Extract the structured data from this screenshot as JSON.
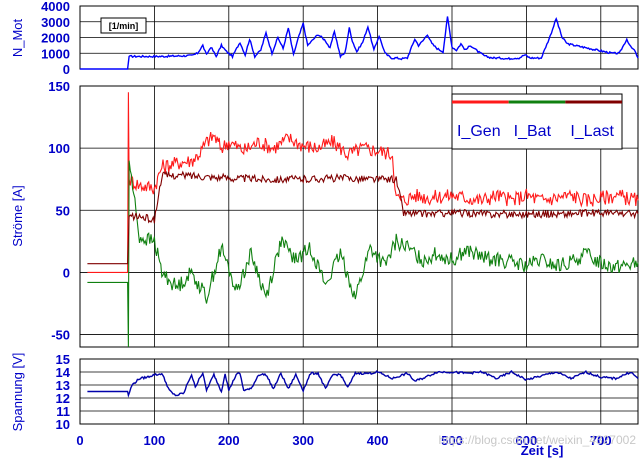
{
  "chart_data": [
    {
      "type": "line",
      "ylabel": "N_Mot",
      "ylim": [
        0,
        4000
      ],
      "yticks": [
        0,
        1000,
        2000,
        3000,
        4000
      ],
      "xlim": [
        0,
        750
      ],
      "grid": true,
      "annotation": "[1/min]",
      "series": [
        {
          "color": "#0000ff",
          "x": [
            0,
            64,
            66,
            110,
            150,
            158,
            165,
            170,
            176,
            183,
            190,
            197,
            205,
            215,
            222,
            228,
            235,
            243,
            250,
            258,
            266,
            273,
            280,
            287,
            293,
            300,
            306,
            312,
            320,
            330,
            336,
            342,
            350,
            356,
            362,
            366,
            372,
            380,
            387,
            395,
            402,
            410,
            418,
            425,
            432,
            440,
            450,
            455,
            461,
            467,
            473,
            480,
            488,
            494,
            500,
            506,
            512,
            518,
            525,
            535,
            545,
            555,
            565,
            575,
            585,
            590,
            598,
            605,
            612,
            620,
            632,
            640,
            648,
            655,
            665,
            675,
            685,
            695,
            705,
            715,
            725,
            735,
            740,
            745,
            750
          ],
          "y": [
            0,
            0,
            800,
            800,
            850,
            1000,
            1500,
            900,
            1400,
            800,
            1500,
            1100,
            800,
            1700,
            900,
            1900,
            800,
            1200,
            2300,
            1000,
            2000,
            1300,
            2600,
            900,
            1900,
            2900,
            1500,
            1800,
            2200,
            1800,
            1300,
            2400,
            800,
            1000,
            2600,
            1800,
            1100,
            1700,
            2700,
            1200,
            2100,
            1000,
            700,
            700,
            650,
            700,
            1900,
            1500,
            1800,
            2200,
            1600,
            1300,
            1100,
            3300,
            1400,
            1200,
            1600,
            1200,
            1500,
            1100,
            800,
            700,
            700,
            650,
            700,
            700,
            900,
            700,
            700,
            700,
            2100,
            3200,
            2000,
            1600,
            1500,
            1400,
            1300,
            1200,
            1100,
            1000,
            1000,
            1900,
            1400,
            1200,
            700
          ]
        }
      ]
    },
    {
      "type": "line",
      "ylabel": "Ströme [A]",
      "ylim": [
        -60,
        150
      ],
      "yticks": [
        -50,
        0,
        50,
        100,
        150
      ],
      "xlim": [
        0,
        750
      ],
      "grid": true,
      "legend": "top-right",
      "series": [
        {
          "name": "I_Gen",
          "color": "#ff1a1a",
          "x": [
            10,
            64,
            65,
            66,
            80,
            100,
            110,
            130,
            150,
            160,
            170,
            180,
            190,
            200,
            220,
            240,
            260,
            280,
            300,
            320,
            340,
            360,
            380,
            400,
            420,
            425,
            435,
            450,
            470,
            500,
            520,
            540,
            560,
            580,
            600,
            620,
            640,
            660,
            680,
            700,
            720,
            750
          ],
          "y": [
            0,
            0,
            145,
            75,
            70,
            68,
            85,
            88,
            90,
            95,
            105,
            110,
            100,
            105,
            98,
            105,
            100,
            108,
            102,
            100,
            105,
            95,
            100,
            98,
            95,
            60,
            58,
            62,
            60,
            62,
            60,
            58,
            62,
            58,
            62,
            58,
            60,
            62,
            58,
            60,
            62,
            58
          ]
        },
        {
          "name": "I_Bat",
          "color": "#108010",
          "x": [
            10,
            64,
            65,
            66,
            80,
            100,
            110,
            130,
            150,
            170,
            190,
            210,
            230,
            250,
            270,
            290,
            310,
            330,
            350,
            370,
            390,
            410,
            425,
            440,
            460,
            480,
            500,
            520,
            540,
            560,
            580,
            600,
            620,
            640,
            660,
            680,
            700,
            720,
            750
          ],
          "y": [
            -8,
            -8,
            -60,
            90,
            28,
            25,
            0,
            -12,
            0,
            -20,
            20,
            -15,
            15,
            -20,
            25,
            10,
            20,
            -10,
            15,
            -20,
            20,
            5,
            25,
            20,
            10,
            15,
            10,
            18,
            12,
            10,
            8,
            5,
            10,
            5,
            8,
            15,
            8,
            5,
            8
          ]
        },
        {
          "name": "I_Last",
          "color": "#800000",
          "x": [
            10,
            64,
            66,
            80,
            100,
            110,
            150,
            200,
            250,
            300,
            350,
            400,
            425,
            435,
            460,
            500,
            550,
            600,
            650,
            700,
            750
          ],
          "y": [
            7,
            7,
            45,
            45,
            42,
            78,
            78,
            76,
            75,
            75,
            76,
            75,
            75,
            48,
            47,
            48,
            47,
            47,
            47,
            48,
            47
          ]
        }
      ]
    },
    {
      "type": "line",
      "ylabel": "Spannung [V]",
      "xlabel": "Zeit [s]",
      "ylim": [
        10,
        15
      ],
      "yticks": [
        10,
        11,
        12,
        13,
        14,
        15
      ],
      "xlim": [
        0,
        750
      ],
      "xticks": [
        0,
        100,
        200,
        300,
        400,
        500,
        600,
        700
      ],
      "grid": true,
      "series": [
        {
          "color": "#0000aa",
          "x": [
            10,
            64,
            65,
            70,
            80,
            90,
            100,
            105,
            110,
            120,
            125,
            130,
            140,
            145,
            150,
            155,
            160,
            165,
            170,
            180,
            190,
            195,
            200,
            210,
            215,
            220,
            230,
            240,
            250,
            260,
            270,
            280,
            290,
            300,
            310,
            320,
            330,
            340,
            350,
            360,
            370,
            380,
            390,
            400,
            420,
            440,
            450,
            460,
            480,
            500,
            520,
            540,
            560,
            580,
            600,
            620,
            640,
            660,
            680,
            700,
            720,
            740,
            750
          ],
          "y": [
            12.5,
            12.5,
            12.2,
            13.0,
            13.5,
            13.6,
            13.8,
            13.8,
            13.9,
            12.6,
            12.3,
            12.2,
            12.4,
            13.2,
            13.8,
            12.8,
            13.5,
            13.9,
            12.6,
            13.8,
            12.5,
            13.9,
            12.6,
            13.8,
            13.9,
            12.6,
            12.7,
            13.8,
            13.8,
            12.7,
            13.9,
            12.7,
            13.8,
            12.6,
            13.9,
            13.9,
            12.7,
            13.8,
            13.8,
            12.8,
            13.9,
            13.9,
            13.9,
            14.0,
            13.5,
            13.9,
            13.3,
            13.5,
            14.0,
            14.0,
            13.9,
            14.0,
            13.5,
            14.0,
            13.4,
            13.7,
            14.0,
            13.5,
            14.0,
            13.6,
            13.5,
            14.0,
            13.5
          ]
        }
      ]
    }
  ],
  "watermark": "https://blog.csdn.net/weixin_4327002"
}
